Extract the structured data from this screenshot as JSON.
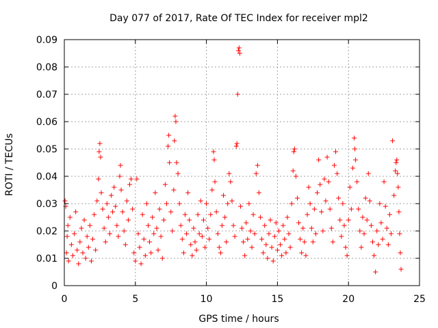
{
  "chart_data": {
    "type": "scatter",
    "title": "Day 077 of 2017, Rate Of TEC Index for receiver mpl2",
    "xlabel": "GPS time / hours",
    "ylabel": "ROTI / TECUs",
    "xlim": [
      0,
      25
    ],
    "ylim": [
      0,
      0.09
    ],
    "xticks": [
      0,
      5,
      10,
      15,
      20,
      25
    ],
    "xtick_labels": [
      "0",
      "5",
      "10",
      "15",
      "20",
      "25"
    ],
    "yticks": [
      0,
      0.01,
      0.02,
      0.03,
      0.04,
      0.05,
      0.06,
      0.07,
      0.08,
      0.09
    ],
    "ytick_labels": [
      "0",
      "0.01",
      "0.02",
      "0.03",
      "0.04",
      "0.05",
      "0.06",
      "0.07",
      "0.08",
      "0.09"
    ],
    "grid": true,
    "marker": "plus",
    "marker_color": "#ff0000",
    "series": [
      {
        "name": "ROTI",
        "points": [
          [
            0.05,
            0.031
          ],
          [
            0.1,
            0.029
          ],
          [
            0.15,
            0.012
          ],
          [
            0.2,
            0.018
          ],
          [
            0.25,
            0.022
          ],
          [
            0.3,
            0.009
          ],
          [
            0.4,
            0.025
          ],
          [
            0.5,
            0.015
          ],
          [
            0.6,
            0.011
          ],
          [
            0.7,
            0.019
          ],
          [
            0.8,
            0.027
          ],
          [
            0.9,
            0.013
          ],
          [
            1.0,
            0.008
          ],
          [
            1.1,
            0.016
          ],
          [
            1.2,
            0.021
          ],
          [
            1.3,
            0.012
          ],
          [
            1.4,
            0.024
          ],
          [
            1.5,
            0.01
          ],
          [
            1.6,
            0.018
          ],
          [
            1.7,
            0.014
          ],
          [
            1.8,
            0.022
          ],
          [
            1.9,
            0.009
          ],
          [
            2.0,
            0.017
          ],
          [
            2.1,
            0.026
          ],
          [
            2.2,
            0.013
          ],
          [
            2.3,
            0.031
          ],
          [
            2.4,
            0.039
          ],
          [
            2.45,
            0.049
          ],
          [
            2.5,
            0.052
          ],
          [
            2.55,
            0.047
          ],
          [
            2.6,
            0.034
          ],
          [
            2.7,
            0.028
          ],
          [
            2.8,
            0.021
          ],
          [
            2.9,
            0.016
          ],
          [
            3.0,
            0.03
          ],
          [
            3.1,
            0.025
          ],
          [
            3.2,
            0.019
          ],
          [
            3.3,
            0.033
          ],
          [
            3.4,
            0.027
          ],
          [
            3.5,
            0.036
          ],
          [
            3.6,
            0.029
          ],
          [
            3.7,
            0.022
          ],
          [
            3.8,
            0.018
          ],
          [
            3.9,
            0.04
          ],
          [
            3.95,
            0.044
          ],
          [
            4.0,
            0.035
          ],
          [
            4.1,
            0.027
          ],
          [
            4.2,
            0.02
          ],
          [
            4.3,
            0.015
          ],
          [
            4.4,
            0.031
          ],
          [
            4.5,
            0.024
          ],
          [
            4.6,
            0.037
          ],
          [
            4.7,
            0.039
          ],
          [
            4.8,
            0.028
          ],
          [
            4.9,
            0.012
          ],
          [
            5.0,
            0.009
          ],
          [
            5.1,
            0.039
          ],
          [
            5.2,
            0.019
          ],
          [
            5.3,
            0.014
          ],
          [
            5.4,
            0.008
          ],
          [
            5.5,
            0.026
          ],
          [
            5.6,
            0.017
          ],
          [
            5.7,
            0.011
          ],
          [
            5.8,
            0.03
          ],
          [
            5.9,
            0.022
          ],
          [
            6.0,
            0.016
          ],
          [
            6.1,
            0.012
          ],
          [
            6.2,
            0.025
          ],
          [
            6.3,
            0.019
          ],
          [
            6.4,
            0.034
          ],
          [
            6.5,
            0.021
          ],
          [
            6.6,
            0.013
          ],
          [
            6.7,
            0.028
          ],
          [
            6.8,
            0.018
          ],
          [
            6.9,
            0.01
          ],
          [
            7.0,
            0.024
          ],
          [
            7.1,
            0.037
          ],
          [
            7.2,
            0.03
          ],
          [
            7.3,
            0.051
          ],
          [
            7.35,
            0.055
          ],
          [
            7.4,
            0.045
          ],
          [
            7.5,
            0.027
          ],
          [
            7.6,
            0.02
          ],
          [
            7.7,
            0.035
          ],
          [
            7.75,
            0.053
          ],
          [
            7.8,
            0.062
          ],
          [
            7.85,
            0.06
          ],
          [
            7.9,
            0.045
          ],
          [
            8.0,
            0.041
          ],
          [
            8.1,
            0.03
          ],
          [
            8.2,
            0.022
          ],
          [
            8.3,
            0.017
          ],
          [
            8.4,
            0.012
          ],
          [
            8.5,
            0.026
          ],
          [
            8.6,
            0.019
          ],
          [
            8.7,
            0.034
          ],
          [
            8.8,
            0.024
          ],
          [
            8.9,
            0.015
          ],
          [
            9.0,
            0.011
          ],
          [
            9.1,
            0.021
          ],
          [
            9.2,
            0.016
          ],
          [
            9.3,
            0.013
          ],
          [
            9.4,
            0.026
          ],
          [
            9.5,
            0.019
          ],
          [
            9.6,
            0.031
          ],
          [
            9.7,
            0.018
          ],
          [
            9.8,
            0.024
          ],
          [
            9.9,
            0.014
          ],
          [
            10.0,
            0.03
          ],
          [
            10.1,
            0.021
          ],
          [
            10.2,
            0.017
          ],
          [
            10.3,
            0.026
          ],
          [
            10.4,
            0.035
          ],
          [
            10.5,
            0.049
          ],
          [
            10.55,
            0.046
          ],
          [
            10.6,
            0.038
          ],
          [
            10.7,
            0.027
          ],
          [
            10.8,
            0.019
          ],
          [
            10.9,
            0.014
          ],
          [
            11.0,
            0.012
          ],
          [
            11.1,
            0.022
          ],
          [
            11.2,
            0.033
          ],
          [
            11.3,
            0.025
          ],
          [
            11.4,
            0.016
          ],
          [
            11.5,
            0.03
          ],
          [
            11.6,
            0.041
          ],
          [
            11.7,
            0.038
          ],
          [
            11.8,
            0.031
          ],
          [
            11.9,
            0.022
          ],
          [
            12.0,
            0.018
          ],
          [
            12.1,
            0.051
          ],
          [
            12.15,
            0.052
          ],
          [
            12.2,
            0.07
          ],
          [
            12.25,
            0.086
          ],
          [
            12.3,
            0.087
          ],
          [
            12.35,
            0.085
          ],
          [
            12.4,
            0.029
          ],
          [
            12.5,
            0.021
          ],
          [
            12.6,
            0.016
          ],
          [
            12.7,
            0.011
          ],
          [
            12.8,
            0.023
          ],
          [
            12.9,
            0.017
          ],
          [
            13.0,
            0.03
          ],
          [
            13.1,
            0.02
          ],
          [
            13.2,
            0.014
          ],
          [
            13.3,
            0.026
          ],
          [
            13.4,
            0.019
          ],
          [
            13.5,
            0.041
          ],
          [
            13.6,
            0.044
          ],
          [
            13.7,
            0.034
          ],
          [
            13.8,
            0.025
          ],
          [
            13.9,
            0.017
          ],
          [
            14.0,
            0.012
          ],
          [
            14.1,
            0.022
          ],
          [
            14.2,
            0.015
          ],
          [
            14.3,
            0.01
          ],
          [
            14.4,
            0.019
          ],
          [
            14.5,
            0.024
          ],
          [
            14.6,
            0.014
          ],
          [
            14.7,
            0.009
          ],
          [
            14.8,
            0.018
          ],
          [
            14.9,
            0.023
          ],
          [
            15.0,
            0.013
          ],
          [
            15.1,
            0.02
          ],
          [
            15.2,
            0.015
          ],
          [
            15.3,
            0.011
          ],
          [
            15.4,
            0.022
          ],
          [
            15.5,
            0.017
          ],
          [
            15.6,
            0.012
          ],
          [
            15.7,
            0.025
          ],
          [
            15.8,
            0.019
          ],
          [
            15.9,
            0.014
          ],
          [
            16.0,
            0.03
          ],
          [
            16.1,
            0.042
          ],
          [
            16.15,
            0.049
          ],
          [
            16.2,
            0.05
          ],
          [
            16.3,
            0.04
          ],
          [
            16.4,
            0.032
          ],
          [
            16.5,
            0.023
          ],
          [
            16.6,
            0.017
          ],
          [
            16.7,
            0.012
          ],
          [
            16.8,
            0.021
          ],
          [
            16.9,
            0.016
          ],
          [
            17.0,
            0.011
          ],
          [
            17.1,
            0.026
          ],
          [
            17.2,
            0.036
          ],
          [
            17.3,
            0.03
          ],
          [
            17.4,
            0.021
          ],
          [
            17.5,
            0.016
          ],
          [
            17.6,
            0.028
          ],
          [
            17.7,
            0.019
          ],
          [
            17.8,
            0.034
          ],
          [
            17.9,
            0.046
          ],
          [
            18.0,
            0.037
          ],
          [
            18.1,
            0.027
          ],
          [
            18.2,
            0.02
          ],
          [
            18.3,
            0.039
          ],
          [
            18.4,
            0.031
          ],
          [
            18.5,
            0.047
          ],
          [
            18.6,
            0.038
          ],
          [
            18.7,
            0.028
          ],
          [
            18.8,
            0.021
          ],
          [
            18.9,
            0.016
          ],
          [
            19.0,
            0.044
          ],
          [
            19.1,
            0.049
          ],
          [
            19.2,
            0.041
          ],
          [
            19.3,
            0.032
          ],
          [
            19.4,
            0.024
          ],
          [
            19.5,
            0.018
          ],
          [
            19.6,
            0.03
          ],
          [
            19.7,
            0.022
          ],
          [
            19.8,
            0.014
          ],
          [
            19.9,
            0.011
          ],
          [
            20.0,
            0.024
          ],
          [
            20.1,
            0.036
          ],
          [
            20.2,
            0.028
          ],
          [
            20.3,
            0.043
          ],
          [
            20.4,
            0.054
          ],
          [
            20.45,
            0.05
          ],
          [
            20.5,
            0.046
          ],
          [
            20.6,
            0.038
          ],
          [
            20.7,
            0.028
          ],
          [
            20.8,
            0.02
          ],
          [
            20.9,
            0.014
          ],
          [
            21.0,
            0.025
          ],
          [
            21.1,
            0.019
          ],
          [
            21.2,
            0.032
          ],
          [
            21.3,
            0.024
          ],
          [
            21.4,
            0.041
          ],
          [
            21.5,
            0.031
          ],
          [
            21.6,
            0.022
          ],
          [
            21.7,
            0.016
          ],
          [
            21.8,
            0.011
          ],
          [
            21.9,
            0.005
          ],
          [
            22.0,
            0.02
          ],
          [
            22.1,
            0.015
          ],
          [
            22.2,
            0.03
          ],
          [
            22.3,
            0.023
          ],
          [
            22.4,
            0.017
          ],
          [
            22.5,
            0.038
          ],
          [
            22.6,
            0.029
          ],
          [
            22.7,
            0.021
          ],
          [
            22.8,
            0.015
          ],
          [
            22.9,
            0.026
          ],
          [
            23.0,
            0.019
          ],
          [
            23.1,
            0.053
          ],
          [
            23.2,
            0.033
          ],
          [
            23.3,
            0.042
          ],
          [
            23.35,
            0.045
          ],
          [
            23.4,
            0.046
          ],
          [
            23.45,
            0.041
          ],
          [
            23.5,
            0.036
          ],
          [
            23.55,
            0.027
          ],
          [
            23.6,
            0.019
          ],
          [
            23.65,
            0.012
          ],
          [
            23.7,
            0.006
          ]
        ]
      }
    ]
  }
}
